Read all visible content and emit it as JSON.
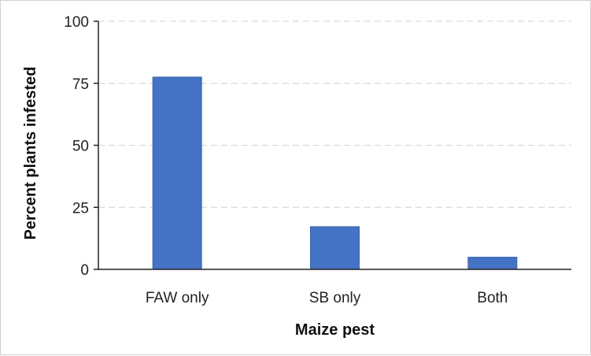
{
  "chart_data": {
    "type": "bar",
    "categories": [
      "FAW only",
      "SB only",
      "Both"
    ],
    "values": [
      77.5,
      17.2,
      4.9
    ],
    "xlabel": "Maize pest",
    "ylabel": "Percent plants infested",
    "ylim": [
      0,
      100
    ],
    "yticks": [
      0,
      25,
      50,
      75,
      100
    ],
    "grid": true,
    "legend": "none",
    "colors": {
      "bar": "#4472C4",
      "bar_edge": "#3a64b0",
      "grid": "#d9d9d9",
      "axis": "#222222"
    }
  }
}
